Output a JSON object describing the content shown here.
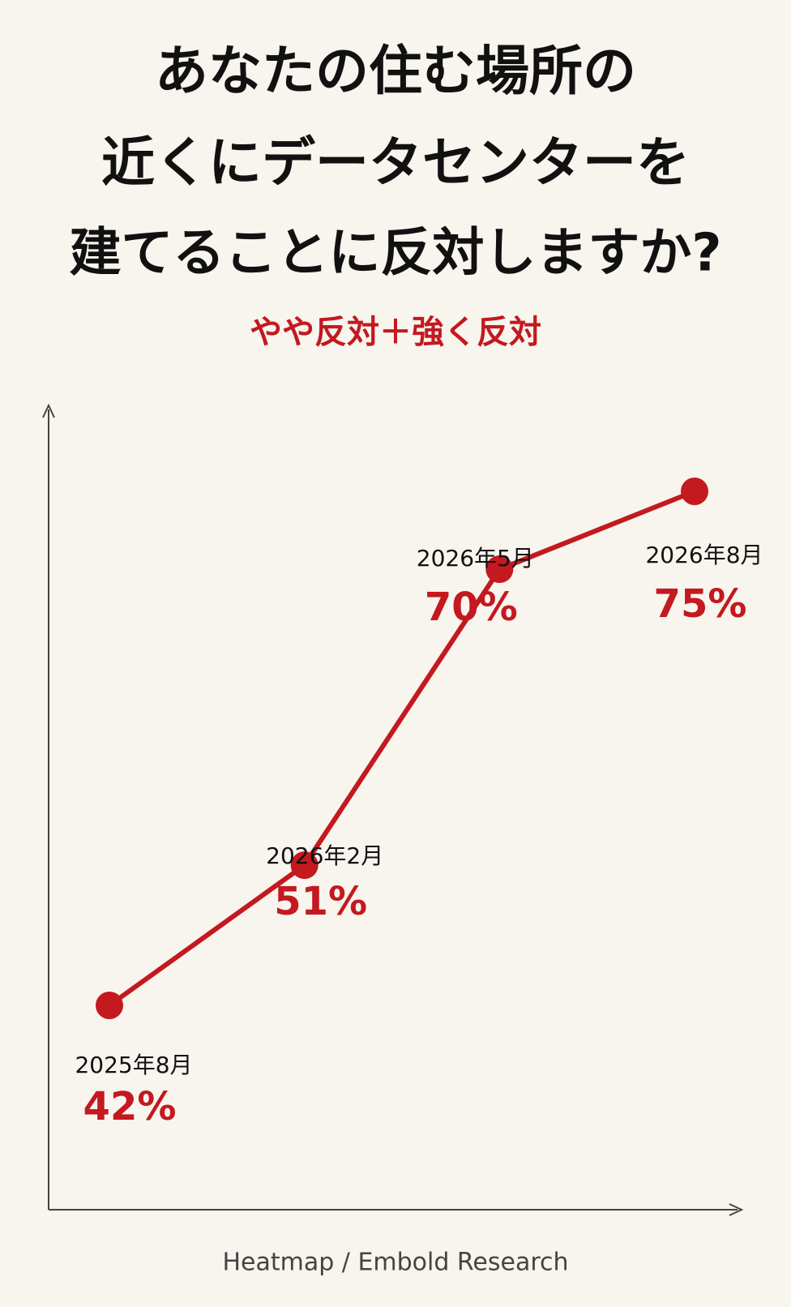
{
  "chart_data": {
    "type": "line",
    "title": [
      "あなたの住む場所の",
      "近くにデータセンターを",
      "建てることに反対しますか?"
    ],
    "subtitle": "やや反対＋強く反対",
    "categories": [
      "2025年8月",
      "2026年2月",
      "2026年5月",
      "2026年8月"
    ],
    "values": [
      42,
      51,
      70,
      75
    ],
    "value_labels": [
      "42%",
      "51%",
      "70%",
      "75%"
    ],
    "color": "#c3191f",
    "source": "Heatmap / Embold Research"
  }
}
